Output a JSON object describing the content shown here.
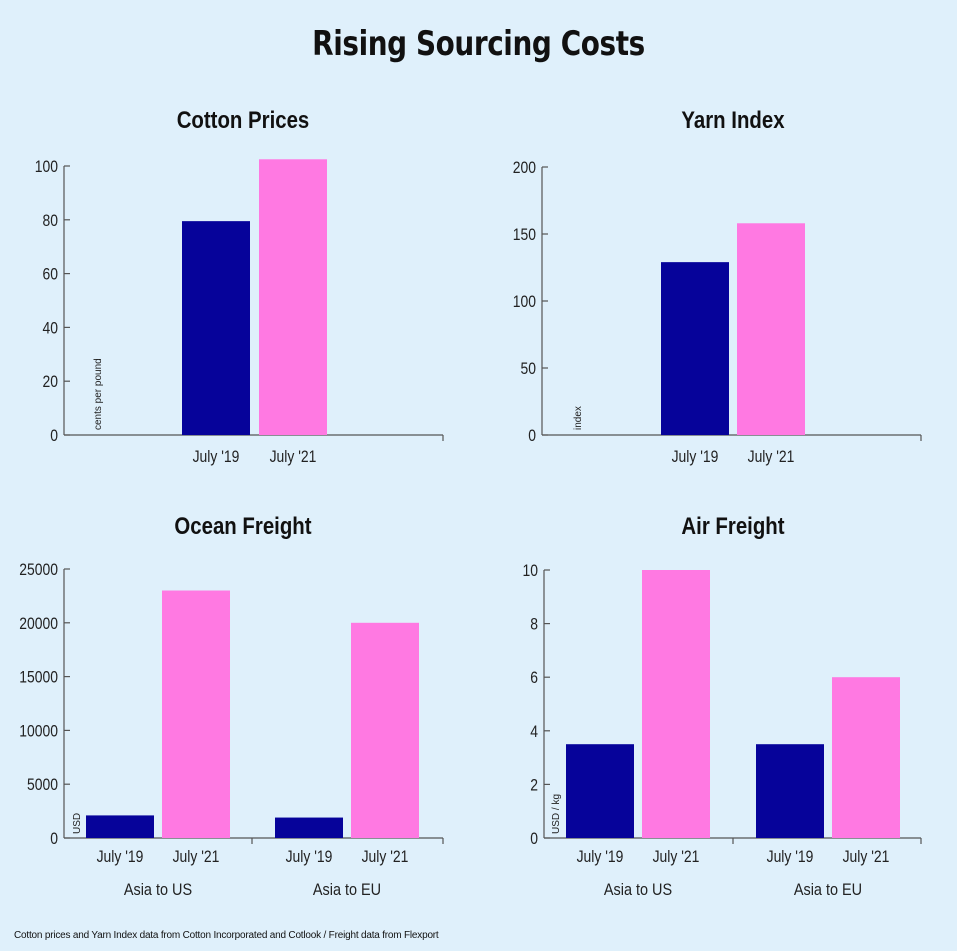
{
  "title": "Rising Sourcing Costs",
  "footnote": "Cotton prices and Yarn Index data from Cotton Incorporated and Cotlook / Freight data from Flexport",
  "colors": {
    "july19": "#06039a",
    "july21": "#ff79e2",
    "axis": "#555555",
    "background": "#dff0fb"
  },
  "chart_data": [
    {
      "id": "cotton",
      "type": "bar",
      "title": "Cotton Prices",
      "ylabel": "cents per pound",
      "ylim": [
        0,
        100
      ],
      "yticks": [
        "0",
        "20",
        "40",
        "60",
        "80",
        "100"
      ],
      "ytick_values": [
        0,
        20,
        40,
        60,
        80,
        100
      ],
      "groups": [
        {
          "name": "",
          "bars": [
            {
              "label": "July '19",
              "value": 79.5,
              "color": "#06039a"
            },
            {
              "label": "July '21",
              "value": 102.5,
              "color": "#ff79e2"
            }
          ]
        }
      ]
    },
    {
      "id": "yarn",
      "type": "bar",
      "title": "Yarn Index",
      "ylabel": "index",
      "ylim": [
        0,
        200
      ],
      "yticks": [
        "0",
        "50",
        "100",
        "150",
        "200"
      ],
      "ytick_values": [
        0,
        50,
        100,
        150,
        200
      ],
      "groups": [
        {
          "name": "",
          "bars": [
            {
              "label": "July '19",
              "value": 129,
              "color": "#06039a"
            },
            {
              "label": "July '21",
              "value": 158,
              "color": "#ff79e2"
            }
          ]
        }
      ]
    },
    {
      "id": "ocean",
      "type": "bar",
      "title": "Ocean Freight",
      "ylabel": "USD",
      "ylim": [
        0,
        25000
      ],
      "yticks": [
        "0",
        "5000",
        "10000",
        "15000",
        "20000",
        "25000"
      ],
      "ytick_values": [
        0,
        5000,
        10000,
        15000,
        20000,
        25000
      ],
      "groups": [
        {
          "name": "Asia to US",
          "bars": [
            {
              "label": "July '19",
              "value": 2100,
              "color": "#06039a"
            },
            {
              "label": "July '21",
              "value": 23000,
              "color": "#ff79e2"
            }
          ]
        },
        {
          "name": "Asia to EU",
          "bars": [
            {
              "label": "July '19",
              "value": 1900,
              "color": "#06039a"
            },
            {
              "label": "July '21",
              "value": 20000,
              "color": "#ff79e2"
            }
          ]
        }
      ]
    },
    {
      "id": "air",
      "type": "bar",
      "title": "Air Freight",
      "ylabel": "USD / kg",
      "ylim": [
        0,
        10
      ],
      "yticks": [
        "0",
        "2",
        "4",
        "6",
        "8",
        "10"
      ],
      "ytick_values": [
        0,
        2,
        4,
        6,
        8,
        10
      ],
      "groups": [
        {
          "name": "Asia to US",
          "bars": [
            {
              "label": "July '19",
              "value": 3.5,
              "color": "#06039a"
            },
            {
              "label": "July '21",
              "value": 10,
              "color": "#ff79e2"
            }
          ]
        },
        {
          "name": "Asia to EU",
          "bars": [
            {
              "label": "July '19",
              "value": 3.5,
              "color": "#06039a"
            },
            {
              "label": "July '21",
              "value": 6,
              "color": "#ff79e2"
            }
          ]
        }
      ]
    }
  ]
}
